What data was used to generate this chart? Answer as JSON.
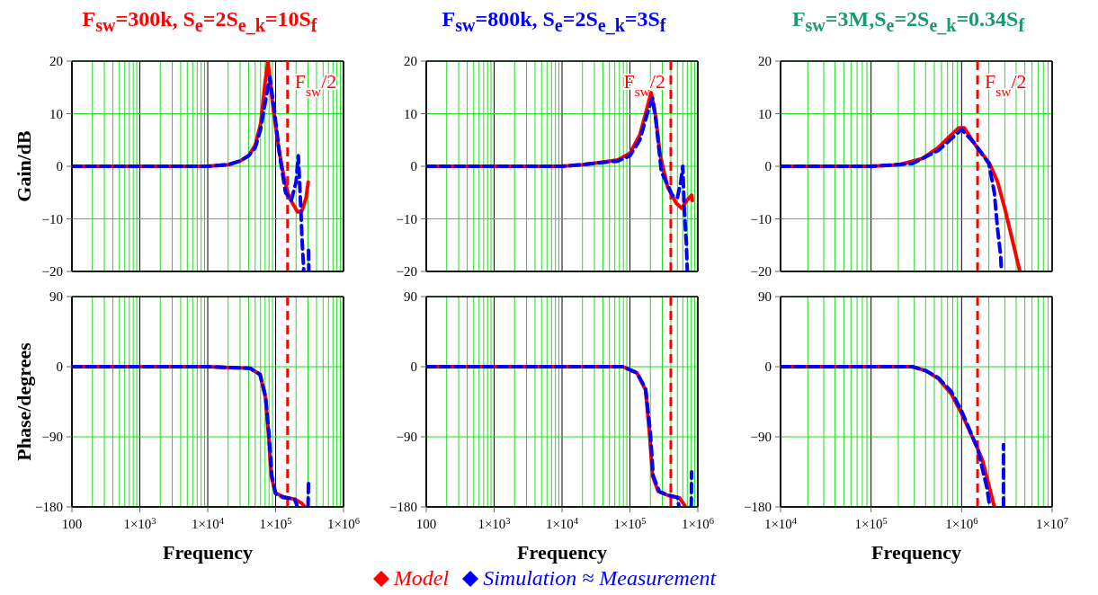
{
  "chart_data": [
    {
      "type": "line",
      "title": "F$_{sw}$=300k, S$_{e}$=2S$_{e_k}$=10S$_{f}$",
      "log": "x",
      "grid": true,
      "tick_labels": "y",
      "xlim": [
        100,
        1000000
      ],
      "xticks": [
        100,
        1000,
        10000,
        100000,
        1000000
      ],
      "ylim": [
        -20,
        20
      ],
      "yticks": [
        -20,
        -10,
        0,
        10,
        20
      ],
      "ylabel": "Gain/dB",
      "ref_lines": [
        {
          "axis": "x",
          "value": 150000,
          "label": "F$_{sw}$/2",
          "color": "#ff0000",
          "line_style": "dashed"
        }
      ],
      "series": [
        {
          "color": "#ff0000",
          "line_style": "solid",
          "x": [
            100,
            1000,
            10000,
            20000,
            30000,
            40000,
            50000,
            60000,
            65000,
            70000,
            77000,
            90000,
            109000,
            132000,
            159000,
            211000,
            244000,
            281000,
            302000
          ],
          "values": [
            0,
            0,
            0,
            0.3,
            1,
            2,
            4,
            8,
            12,
            16,
            20,
            12,
            4,
            -2,
            -6,
            -8.7,
            -8.5,
            -6,
            -3
          ]
        },
        {
          "color": "#0000ff",
          "line_style": "dashed",
          "x": [
            100,
            1000,
            10000,
            20000,
            30000,
            40000,
            50000,
            60000,
            70000,
            82000,
            95000,
            115000,
            140000,
            170000,
            200000,
            216000,
            235000,
            245000,
            260000,
            280000,
            305000,
            308000
          ],
          "values": [
            0,
            0,
            0,
            0.3,
            1,
            2,
            3.5,
            7,
            12,
            17,
            11,
            2,
            -5,
            -6.5,
            -3,
            2,
            -8,
            -14,
            -20,
            null,
            -16,
            -20
          ]
        }
      ]
    },
    {
      "type": "line",
      "title": "F$_{sw}$=800k, S$_{e}$=2S$_{e_k}$=3S$_{f}$",
      "log": "x",
      "grid": true,
      "tick_labels": "y",
      "xlim": [
        100,
        1000000
      ],
      "xticks": [
        100,
        1000,
        10000,
        100000,
        1000000
      ],
      "ylim": [
        -20,
        20
      ],
      "yticks": [
        -20,
        -10,
        0,
        10,
        20
      ],
      "ref_lines": [
        {
          "axis": "x",
          "value": 400000,
          "label": "F$_{sw}$/2",
          "color": "#ff0000",
          "line_style": "dashed"
        }
      ],
      "series": [
        {
          "color": "#ff0000",
          "line_style": "solid",
          "x": [
            100,
            1000,
            10000,
            20000,
            31000,
            66000,
            100000,
            140000,
            178000,
            205000,
            236000,
            280000,
            360000,
            480000,
            580000,
            690000,
            810000,
            830000
          ],
          "values": [
            0,
            0,
            0,
            0.3,
            0.6,
            1.2,
            2.5,
            6,
            11,
            14,
            10,
            2,
            -4,
            -7,
            -8,
            -6.5,
            -5.5,
            -6.5
          ]
        },
        {
          "color": "#0000ff",
          "line_style": "dashed",
          "x": [
            100,
            1000,
            10000,
            20000,
            31000,
            66000,
            100000,
            140000,
            180000,
            215000,
            240000,
            290000,
            420000,
            500000,
            560000,
            600000,
            630000,
            680000,
            700000
          ],
          "values": [
            0,
            0,
            0,
            0.3,
            0.6,
            1,
            2,
            5,
            10,
            13,
            9,
            -1,
            -5.5,
            -6,
            -3,
            0,
            -8,
            -15,
            -20
          ]
        }
      ]
    },
    {
      "type": "line",
      "title": "F$_{sw}$=3M,S$_{e}$=2S$_{e_k}$=0.34S$_{f}$",
      "log": "x",
      "grid": true,
      "tick_labels": "y",
      "xlim": [
        10000,
        10000000
      ],
      "xticks": [
        10000,
        100000,
        1000000,
        10000000
      ],
      "ylim": [
        -20,
        20
      ],
      "yticks": [
        -20,
        -10,
        0,
        10,
        20
      ],
      "ref_lines": [
        {
          "axis": "x",
          "value": 1500000,
          "label": "F$_{sw}$/2",
          "color": "#ff0000",
          "line_style": "dashed"
        }
      ],
      "series": [
        {
          "color": "#ff0000",
          "line_style": "solid",
          "x": [
            10000,
            100000,
            207000,
            370000,
            550000,
            770000,
            930000,
            1070000,
            1400000,
            2040000,
            2500000,
            3050000,
            4400000
          ],
          "values": [
            0,
            0,
            0.3,
            1.5,
            3.5,
            6,
            7.3,
            7.3,
            4.2,
            0.5,
            -3,
            -8.5,
            -20
          ]
        },
        {
          "color": "#0000ff",
          "line_style": "dashed",
          "x": [
            10000,
            100000,
            285000,
            550000,
            1000000,
            1400000,
            2000000,
            2300000,
            2500000,
            2700000,
            2750000
          ],
          "values": [
            0,
            0,
            0.5,
            3,
            7,
            4.3,
            0.5,
            -5,
            -12,
            -17,
            -20
          ]
        }
      ]
    },
    {
      "type": "line",
      "log": "x",
      "grid": true,
      "xlim": [
        100,
        1000000
      ],
      "xticks": [
        100,
        {
          "value": 1000,
          "label": "1×10$^{3}$"
        },
        {
          "value": 10000,
          "label": "1×10$^{4}$"
        },
        {
          "value": 100000,
          "label": "1×10$^{5}$"
        },
        {
          "value": 1000000,
          "label": "1×10$^{6}$"
        }
      ],
      "ylim": [
        -180,
        90
      ],
      "yticks": [
        -180,
        -90,
        0,
        90
      ],
      "ylabel": "Phase/degrees",
      "xlabel": "Frequency",
      "ref_lines": [
        {
          "axis": "x",
          "value": 150000,
          "color": "#ff0000",
          "line_style": "dashed"
        }
      ],
      "series": [
        {
          "color": "#ff0000",
          "line_style": "solid",
          "x": [
            100,
            1000,
            10000,
            42000,
            59000,
            71000,
            79000,
            86000,
            99000,
            130000,
            190000,
            240000,
            270000
          ],
          "values": [
            0,
            0,
            0,
            -2,
            -10,
            -40,
            -90,
            -140,
            -162,
            -167,
            -170,
            -175,
            -180
          ]
        },
        {
          "color": "#0000ff",
          "line_style": "dashed",
          "x": [
            100,
            1000,
            10000,
            42000,
            59000,
            71000,
            80000,
            88000,
            100000,
            130000,
            190000,
            210000,
            250000,
            300000,
            305000
          ],
          "values": [
            0,
            0,
            0,
            -2,
            -10,
            -38,
            -88,
            -140,
            -163,
            -168,
            -170,
            -180,
            null,
            -180,
            -148
          ]
        }
      ]
    },
    {
      "type": "line",
      "log": "x",
      "grid": true,
      "legend": "bottom",
      "xlim": [
        100,
        1000000
      ],
      "xticks": [
        100,
        {
          "value": 1000,
          "label": "1×10$^{3}$"
        },
        {
          "value": 10000,
          "label": "1×10$^{4}$"
        },
        {
          "value": 100000,
          "label": "1×10$^{5}$"
        },
        {
          "value": 1000000,
          "label": "1×10$^{6}$"
        }
      ],
      "ylim": [
        -180,
        90
      ],
      "yticks": [
        -180,
        -90,
        0,
        90
      ],
      "xlabel": "Frequency",
      "ref_lines": [
        {
          "axis": "x",
          "value": 400000,
          "color": "#ff0000",
          "line_style": "dashed"
        }
      ],
      "series": [
        {
          "name": "Model",
          "color": "#ff0000",
          "line_style": "solid",
          "x": [
            100,
            1000,
            10000,
            79000,
            127000,
            170000,
            196000,
            215000,
            260000,
            360000,
            530000,
            610000,
            660000
          ],
          "values": [
            0,
            0,
            0,
            0,
            -8,
            -30,
            -90,
            -140,
            -160,
            -165,
            -168,
            -175,
            -180
          ]
        },
        {
          "name": "Simulation ≈ Measurement",
          "color": "#0000ff",
          "line_style": "dashed",
          "x": [
            100,
            1000,
            10000,
            79000,
            127000,
            170000,
            200000,
            220000,
            270000,
            360000,
            500000,
            530000,
            700000,
            800000,
            810000
          ],
          "values": [
            0,
            0,
            0,
            0,
            -8,
            -28,
            -85,
            -140,
            -160,
            -165,
            -168,
            -180,
            null,
            -180,
            -135
          ]
        }
      ]
    },
    {
      "type": "line",
      "log": "x",
      "grid": true,
      "xlim": [
        10000,
        10000000
      ],
      "xticks": [
        {
          "value": 10000,
          "label": "1×10$^{4}$"
        },
        {
          "value": 100000,
          "label": "1×10$^{5}$"
        },
        {
          "value": 1000000,
          "label": "1×10$^{6}$"
        },
        {
          "value": 10000000,
          "label": "1×10$^{7}$"
        }
      ],
      "ylim": [
        -180,
        90
      ],
      "yticks": [
        -180,
        -90,
        0,
        90
      ],
      "xlabel": "Frequency",
      "ref_lines": [
        {
          "axis": "x",
          "value": 1500000,
          "color": "#ff0000",
          "line_style": "dashed"
        }
      ],
      "series": [
        {
          "color": "#ff0000",
          "line_style": "solid",
          "x": [
            10000,
            100000,
            285000,
            400000,
            550000,
            770000,
            1000000,
            1500000,
            1700000,
            2300000
          ],
          "values": [
            0,
            0,
            0,
            -5,
            -15,
            -35,
            -60,
            -105,
            -120,
            -180
          ]
        },
        {
          "color": "#0000ff",
          "line_style": "dashed",
          "x": [
            10000,
            100000,
            285000,
            400000,
            550000,
            770000,
            1000000,
            1500000,
            1900000,
            2050000,
            2500000,
            2900000,
            2900000
          ],
          "values": [
            0,
            0,
            0,
            -5,
            -14,
            -32,
            -57,
            -105,
            -155,
            -180,
            null,
            -180,
            -100
          ]
        }
      ]
    }
  ]
}
